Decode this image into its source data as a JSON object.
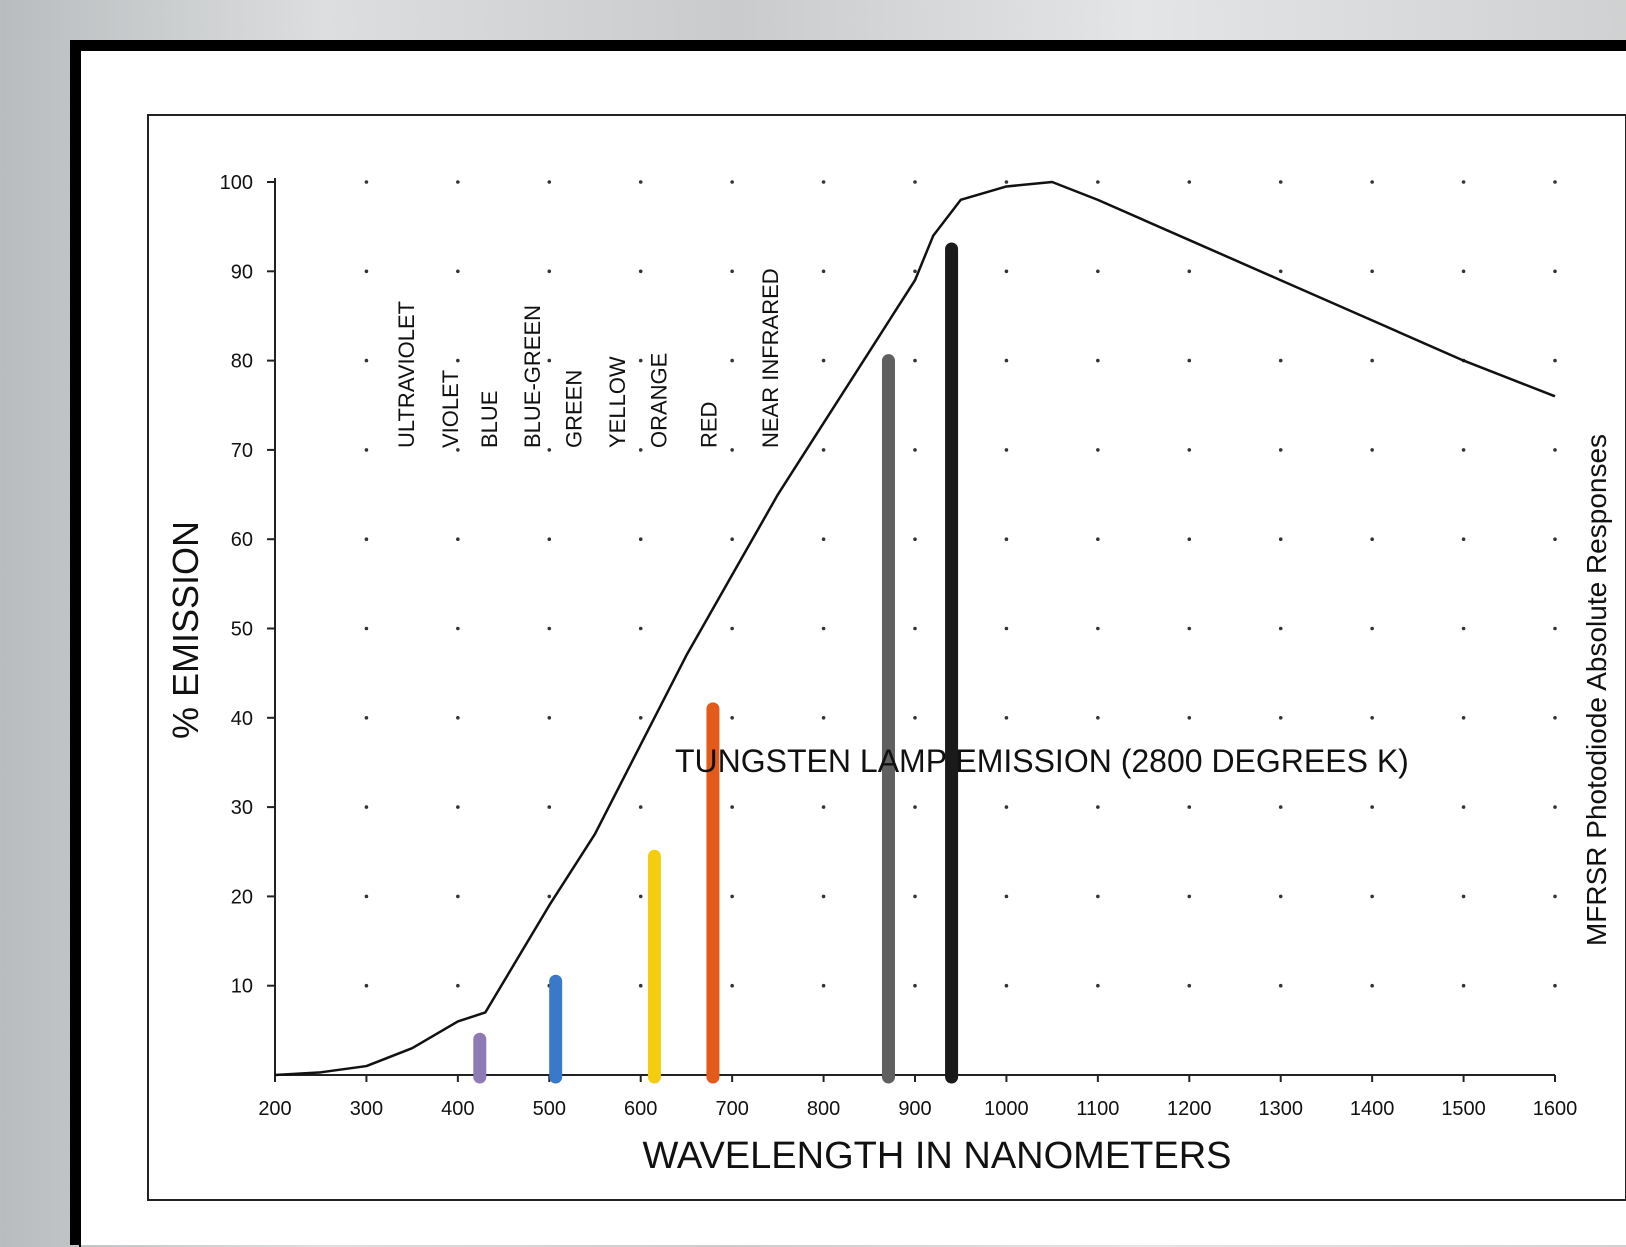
{
  "chart_data": {
    "type": "line",
    "title": "",
    "xlabel": "WAVELENGTH IN NANOMETERS",
    "ylabel": "% EMISSION",
    "right_label": "MFRSR Photodiode Absolute Responses",
    "xlim": [
      200,
      1600
    ],
    "ylim": [
      0,
      100
    ],
    "x_ticks": [
      200,
      300,
      400,
      500,
      600,
      700,
      800,
      900,
      1000,
      1100,
      1200,
      1300,
      1400,
      1500,
      1600
    ],
    "y_ticks": [
      10,
      20,
      30,
      40,
      50,
      60,
      70,
      80,
      90,
      100
    ],
    "grid": "dotted",
    "series": [
      {
        "name": "TUNGSTEN LAMP EMISSION (2800 DEGREES K)",
        "x": [
          200,
          250,
          300,
          350,
          400,
          430,
          500,
          550,
          600,
          650,
          700,
          750,
          800,
          850,
          900,
          920,
          950,
          1000,
          1050,
          1100,
          1200,
          1300,
          1400,
          1500,
          1600
        ],
        "y": [
          0,
          0.3,
          1,
          3,
          6,
          7,
          19,
          27,
          37,
          47,
          56,
          65,
          73,
          81,
          89,
          94,
          98,
          99.5,
          100,
          98,
          93.5,
          89,
          84.5,
          80,
          76
        ],
        "color": "#111111"
      }
    ],
    "bars": [
      {
        "x": 424,
        "value": 4,
        "color": "#8e7ab5"
      },
      {
        "x": 507,
        "value": 10.5,
        "color": "#3a78c9"
      },
      {
        "x": 615,
        "value": 24.5,
        "color": "#f5cd10"
      },
      {
        "x": 679,
        "value": 41,
        "color": "#e25b1b"
      },
      {
        "x": 871,
        "value": 80,
        "color": "#606060"
      },
      {
        "x": 940,
        "value": 92.5,
        "color": "#1a1a1a"
      }
    ],
    "band_labels": [
      {
        "text": "ULTRAVIOLET",
        "x": 352
      },
      {
        "text": "VIOLET",
        "x": 400
      },
      {
        "text": "BLUE",
        "x": 443
      },
      {
        "text": "BLUE-GREEN",
        "x": 490
      },
      {
        "text": "GREEN",
        "x": 535
      },
      {
        "text": "YELLOW",
        "x": 583
      },
      {
        "text": "ORANGE",
        "x": 628
      },
      {
        "text": "RED",
        "x": 683
      },
      {
        "text": "NEAR INFRARED",
        "x": 750
      }
    ]
  }
}
